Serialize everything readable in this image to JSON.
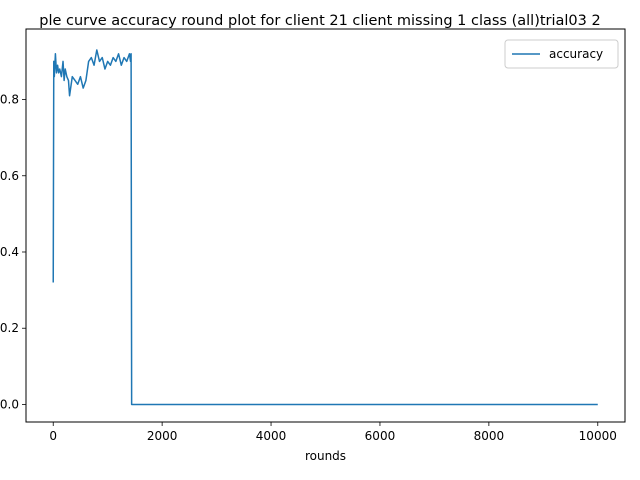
{
  "chart_data": {
    "type": "line",
    "title": "ple curve accuracy round plot for client 21 client missing 1 class (all)trial03 2",
    "xlabel": "rounds",
    "ylabel": "",
    "xlim": [
      -500,
      10500
    ],
    "ylim": [
      -0.046,
      0.985
    ],
    "xticks": [
      0,
      2000,
      4000,
      6000,
      8000,
      10000
    ],
    "xtick_labels": [
      "0",
      "2000",
      "4000",
      "6000",
      "8000",
      "10000"
    ],
    "yticks": [
      0.0,
      0.2,
      0.4,
      0.6,
      0.8
    ],
    "ytick_labels": [
      "0.0",
      "0.2",
      "0.4",
      "0.6",
      "0.8"
    ],
    "grid": false,
    "legend_position": "top-right",
    "series": [
      {
        "name": "accuracy",
        "color": "#1f77b4",
        "x": [
          0,
          10,
          20,
          40,
          60,
          80,
          100,
          120,
          150,
          180,
          200,
          220,
          250,
          280,
          300,
          350,
          400,
          450,
          500,
          550,
          600,
          620,
          650,
          700,
          750,
          800,
          850,
          900,
          950,
          1000,
          1050,
          1100,
          1150,
          1200,
          1250,
          1300,
          1350,
          1400,
          1420,
          1430,
          1440,
          2000,
          4000,
          6000,
          8000,
          10000
        ],
        "y": [
          0.32,
          0.9,
          0.86,
          0.92,
          0.87,
          0.89,
          0.87,
          0.88,
          0.86,
          0.9,
          0.85,
          0.88,
          0.86,
          0.85,
          0.81,
          0.86,
          0.85,
          0.84,
          0.86,
          0.83,
          0.85,
          0.87,
          0.9,
          0.91,
          0.89,
          0.93,
          0.9,
          0.91,
          0.88,
          0.9,
          0.89,
          0.91,
          0.9,
          0.92,
          0.89,
          0.91,
          0.9,
          0.92,
          0.9,
          0.92,
          0.0,
          0.0,
          0.0,
          0.0,
          0.0,
          0.0
        ]
      }
    ]
  }
}
